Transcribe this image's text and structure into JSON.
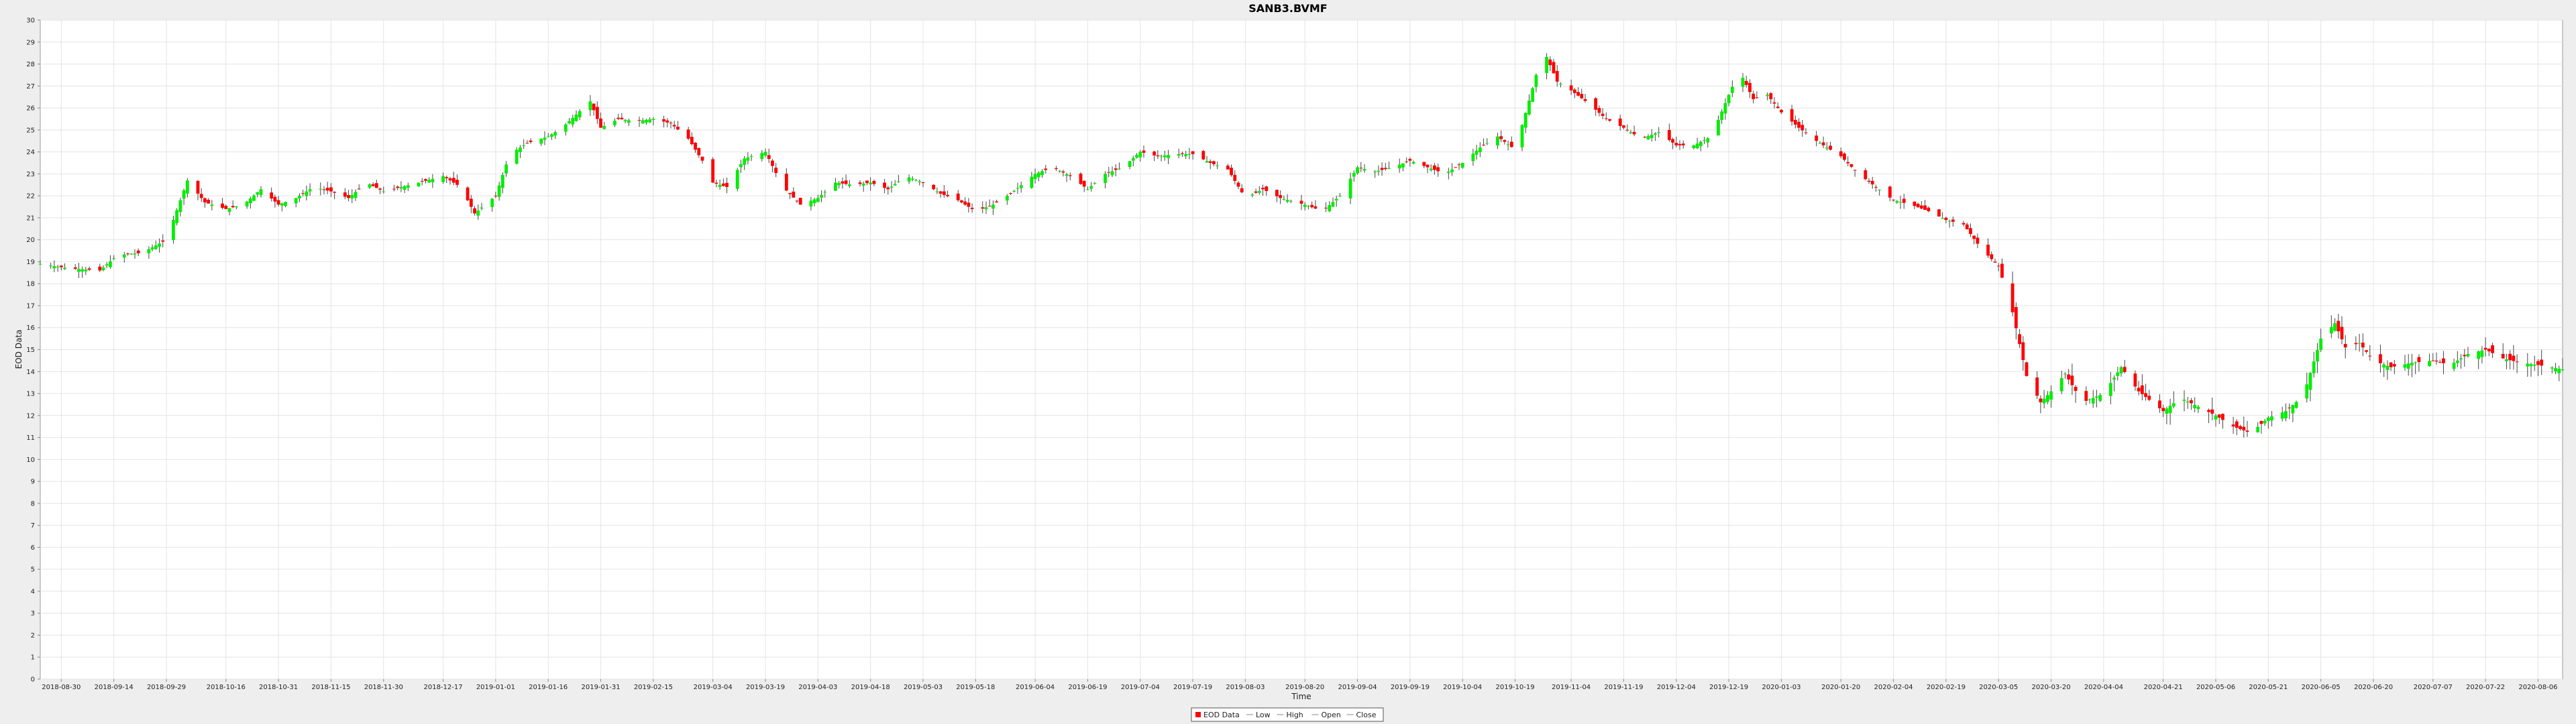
{
  "chart_data": {
    "type": "candlestick",
    "title": "SANB3.BVMF",
    "xlabel": "Time",
    "ylabel": "EOD Data",
    "ylim": [
      0,
      30
    ],
    "yticks": [
      0,
      1,
      2,
      3,
      4,
      5,
      6,
      7,
      8,
      9,
      10,
      11,
      12,
      13,
      14,
      15,
      16,
      17,
      18,
      19,
      20,
      21,
      22,
      23,
      24,
      25,
      26,
      27,
      28,
      29,
      30
    ],
    "xlim": [
      "2018-08-24",
      "2020-08-13"
    ],
    "xticks": [
      "2018-08-30",
      "2018-09-14",
      "2018-09-29",
      "2018-10-16",
      "2018-10-31",
      "2018-11-15",
      "2018-11-30",
      "2018-12-17",
      "2019-01-01",
      "2019-01-16",
      "2019-01-31",
      "2019-02-15",
      "2019-03-04",
      "2019-03-19",
      "2019-04-03",
      "2019-04-18",
      "2019-05-03",
      "2019-05-18",
      "2019-06-04",
      "2019-06-19",
      "2019-07-04",
      "2019-07-19",
      "2019-08-03",
      "2019-08-20",
      "2019-09-04",
      "2019-09-19",
      "2019-10-04",
      "2019-10-19",
      "2019-11-04",
      "2019-11-19",
      "2019-12-04",
      "2019-12-19",
      "2020-01-03",
      "2020-01-20",
      "2020-02-04",
      "2020-02-19",
      "2020-03-05",
      "2020-03-20",
      "2020-04-04",
      "2020-04-21",
      "2020-05-06",
      "2020-05-21",
      "2020-06-05",
      "2020-06-20",
      "2020-07-07",
      "2020-07-22",
      "2020-08-06"
    ],
    "close_path": [
      [
        "2018-08-24",
        18.9
      ],
      [
        "2018-09-01",
        18.7
      ],
      [
        "2018-09-10",
        18.6
      ],
      [
        "2018-09-15",
        19.3
      ],
      [
        "2018-09-22",
        19.4
      ],
      [
        "2018-09-29",
        20.0
      ],
      [
        "2018-10-05",
        22.7
      ],
      [
        "2018-10-10",
        21.7
      ],
      [
        "2018-10-16",
        21.4
      ],
      [
        "2018-10-21",
        21.6
      ],
      [
        "2018-10-26",
        22.3
      ],
      [
        "2018-10-31",
        21.6
      ],
      [
        "2018-11-05",
        21.9
      ],
      [
        "2018-11-10",
        22.4
      ],
      [
        "2018-11-15",
        22.2
      ],
      [
        "2018-11-20",
        21.9
      ],
      [
        "2018-11-25",
        22.6
      ],
      [
        "2018-11-30",
        22.2
      ],
      [
        "2018-12-05",
        22.4
      ],
      [
        "2018-12-10",
        22.6
      ],
      [
        "2018-12-17",
        22.9
      ],
      [
        "2018-12-22",
        22.4
      ],
      [
        "2018-12-26",
        21.2
      ],
      [
        "2019-01-01",
        22.0
      ],
      [
        "2019-01-05",
        23.9
      ],
      [
        "2019-01-10",
        24.4
      ],
      [
        "2019-01-16",
        24.7
      ],
      [
        "2019-01-20",
        25.1
      ],
      [
        "2019-01-24",
        25.7
      ],
      [
        "2019-01-28",
        26.3
      ],
      [
        "2019-01-31",
        25.1
      ],
      [
        "2019-02-05",
        25.5
      ],
      [
        "2019-02-10",
        25.4
      ],
      [
        "2019-02-15",
        25.5
      ],
      [
        "2019-02-20",
        25.3
      ],
      [
        "2019-02-25",
        24.6
      ],
      [
        "2019-03-01",
        23.6
      ],
      [
        "2019-03-04",
        22.6
      ],
      [
        "2019-03-08",
        22.4
      ],
      [
        "2019-03-13",
        23.7
      ],
      [
        "2019-03-19",
        24.0
      ],
      [
        "2019-03-24",
        22.4
      ],
      [
        "2019-03-29",
        21.6
      ],
      [
        "2019-04-03",
        21.9
      ],
      [
        "2019-04-08",
        22.6
      ],
      [
        "2019-04-13",
        22.5
      ],
      [
        "2019-04-18",
        22.6
      ],
      [
        "2019-04-23",
        22.3
      ],
      [
        "2019-04-28",
        22.9
      ],
      [
        "2019-05-03",
        22.6
      ],
      [
        "2019-05-08",
        22.1
      ],
      [
        "2019-05-13",
        21.8
      ],
      [
        "2019-05-18",
        21.3
      ],
      [
        "2019-05-23",
        21.6
      ],
      [
        "2019-05-28",
        22.1
      ],
      [
        "2019-06-04",
        23.0
      ],
      [
        "2019-06-09",
        23.3
      ],
      [
        "2019-06-14",
        22.9
      ],
      [
        "2019-06-19",
        22.3
      ],
      [
        "2019-06-24",
        23.0
      ],
      [
        "2019-06-29",
        23.3
      ],
      [
        "2019-07-04",
        24.0
      ],
      [
        "2019-07-09",
        23.8
      ],
      [
        "2019-07-14",
        23.9
      ],
      [
        "2019-07-19",
        23.9
      ],
      [
        "2019-07-24",
        23.5
      ],
      [
        "2019-07-29",
        23.2
      ],
      [
        "2019-08-03",
        21.9
      ],
      [
        "2019-08-08",
        22.3
      ],
      [
        "2019-08-13",
        21.9
      ],
      [
        "2019-08-20",
        21.6
      ],
      [
        "2019-08-25",
        21.3
      ],
      [
        "2019-08-30",
        22.0
      ],
      [
        "2019-09-04",
        23.3
      ],
      [
        "2019-09-09",
        23.1
      ],
      [
        "2019-09-14",
        23.3
      ],
      [
        "2019-09-19",
        23.6
      ],
      [
        "2019-09-24",
        23.3
      ],
      [
        "2019-09-29",
        23.0
      ],
      [
        "2019-10-04",
        23.5
      ],
      [
        "2019-10-09",
        24.2
      ],
      [
        "2019-10-14",
        24.7
      ],
      [
        "2019-10-19",
        24.1
      ],
      [
        "2019-10-24",
        26.9
      ],
      [
        "2019-10-27",
        28.7
      ],
      [
        "2019-10-31",
        27.2
      ],
      [
        "2019-11-04",
        26.8
      ],
      [
        "2019-11-09",
        26.2
      ],
      [
        "2019-11-14",
        25.5
      ],
      [
        "2019-11-19",
        25.1
      ],
      [
        "2019-11-24",
        24.6
      ],
      [
        "2019-11-29",
        24.9
      ],
      [
        "2019-12-04",
        24.3
      ],
      [
        "2019-12-09",
        24.3
      ],
      [
        "2019-12-14",
        24.7
      ],
      [
        "2019-12-19",
        26.6
      ],
      [
        "2019-12-22",
        27.7
      ],
      [
        "2019-12-26",
        26.4
      ],
      [
        "2019-12-30",
        26.6
      ],
      [
        "2020-01-03",
        25.8
      ],
      [
        "2020-01-08",
        25.1
      ],
      [
        "2020-01-13",
        24.5
      ],
      [
        "2020-01-20",
        23.8
      ],
      [
        "2020-01-25",
        23.0
      ],
      [
        "2020-01-30",
        22.4
      ],
      [
        "2020-02-04",
        21.8
      ],
      [
        "2020-02-09",
        21.6
      ],
      [
        "2020-02-14",
        21.3
      ],
      [
        "2020-02-19",
        20.9
      ],
      [
        "2020-02-24",
        20.7
      ],
      [
        "2020-02-29",
        19.6
      ],
      [
        "2020-03-05",
        18.8
      ],
      [
        "2020-03-09",
        16.7
      ],
      [
        "2020-03-13",
        13.8
      ],
      [
        "2020-03-17",
        12.6
      ],
      [
        "2020-03-20",
        13.1
      ],
      [
        "2020-03-24",
        13.9
      ],
      [
        "2020-03-29",
        12.6
      ],
      [
        "2020-04-04",
        13.0
      ],
      [
        "2020-04-09",
        14.2
      ],
      [
        "2020-04-14",
        13.1
      ],
      [
        "2020-04-21",
        12.2
      ],
      [
        "2020-04-26",
        12.8
      ],
      [
        "2020-05-01",
        12.4
      ],
      [
        "2020-05-06",
        12.0
      ],
      [
        "2020-05-11",
        11.5
      ],
      [
        "2020-05-16",
        11.2
      ],
      [
        "2020-05-21",
        11.9
      ],
      [
        "2020-05-26",
        12.2
      ],
      [
        "2020-05-31",
        12.9
      ],
      [
        "2020-06-05",
        15.5
      ],
      [
        "2020-06-09",
        16.2
      ],
      [
        "2020-06-12",
        15.1
      ],
      [
        "2020-06-16",
        15.3
      ],
      [
        "2020-06-20",
        14.5
      ],
      [
        "2020-06-25",
        14.2
      ],
      [
        "2020-07-01",
        14.4
      ],
      [
        "2020-07-07",
        14.5
      ],
      [
        "2020-07-12",
        14.3
      ],
      [
        "2020-07-17",
        14.8
      ],
      [
        "2020-07-22",
        15.0
      ],
      [
        "2020-07-27",
        14.6
      ],
      [
        "2020-08-01",
        14.4
      ],
      [
        "2020-08-06",
        14.3
      ],
      [
        "2020-08-13",
        14.1
      ]
    ],
    "legend": {
      "placement": "bottom-center",
      "items": [
        {
          "label": "EOD Data",
          "color": "#ff0000"
        },
        {
          "label": "Low",
          "color": "#888888"
        },
        {
          "label": "High",
          "color": "#888888"
        },
        {
          "label": "Open",
          "color": "#888888"
        },
        {
          "label": "Close",
          "color": "#888888"
        }
      ]
    },
    "colors": {
      "up": "#00ee00",
      "down": "#ff0000",
      "wick": "#444444"
    },
    "grid": true
  }
}
